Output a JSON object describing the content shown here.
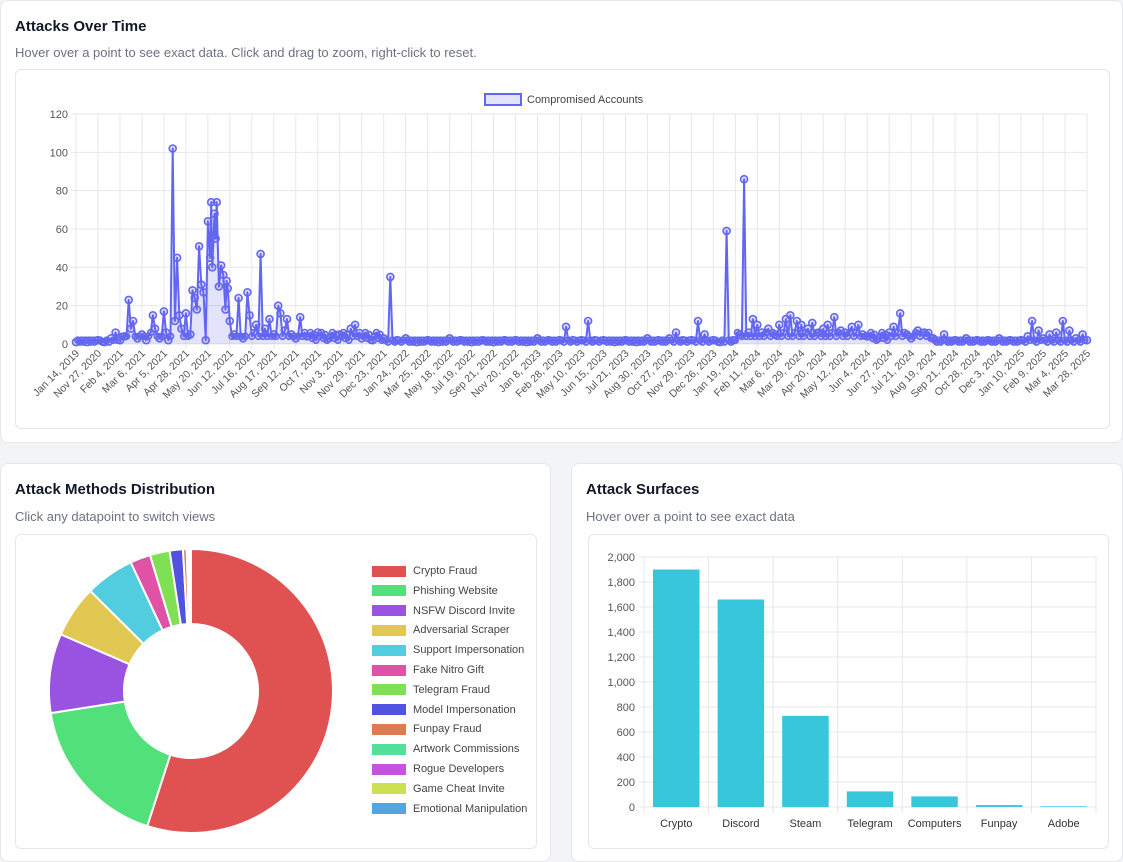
{
  "cards": {
    "time": {
      "title": "Attacks Over Time",
      "subtitle": "Hover over a point to see exact data. Click and drag to zoom, right-click to reset."
    },
    "methods": {
      "title": "Attack Methods Distribution",
      "subtitle": "Click any datapoint to switch views"
    },
    "surfaces": {
      "title": "Attack Surfaces",
      "subtitle": "Hover over a point to see exact data"
    }
  },
  "colors": {
    "line": "#6366f1",
    "line_fill": "rgba(99,102,241,0.18)",
    "bar": "#38c6dd",
    "grid": "#e5e7eb"
  },
  "chart_data": [
    {
      "type": "line",
      "title": "Attacks Over Time",
      "series": [
        {
          "name": "Compromised Accounts"
        }
      ],
      "ylim": [
        0,
        120
      ],
      "yticks": [
        0,
        20,
        40,
        60,
        80,
        100,
        120
      ],
      "xticks": [
        "Jan 14, 2019",
        "Nov 27, 2020",
        "Feb 4, 2021",
        "Mar 6, 2021",
        "Apr 5, 2021",
        "Apr 28, 2021",
        "May 20, 2021",
        "Jun 12, 2021",
        "Jul 16, 2021",
        "Aug 17, 2021",
        "Sep 12, 2021",
        "Oct 7, 2021",
        "Nov 3, 2021",
        "Nov 29, 2021",
        "Dec 23, 2021",
        "Jan 24, 2022",
        "Mar 25, 2022",
        "May 18, 2022",
        "Jul 19, 2022",
        "Sep 21, 2022",
        "Nov 20, 2022",
        "Jan 8, 2023",
        "Feb 28, 2023",
        "May 10, 2023",
        "Jun 15, 2023",
        "Jul 21, 2023",
        "Aug 30, 2023",
        "Oct 27, 2023",
        "Nov 29, 2023",
        "Dec 26, 2023",
        "Jan 19, 2024",
        "Feb 11, 2024",
        "Mar 6, 2024",
        "Mar 29, 2024",
        "Apr 20, 2024",
        "May 12, 2024",
        "Jun 4, 2024",
        "Jun 27, 2024",
        "Jul 21, 2024",
        "Aug 19, 2024",
        "Sep 21, 2024",
        "Oct 28, 2024",
        "Dec 3, 2024",
        "Jan 10, 2025",
        "Feb 9, 2025",
        "Mar 4, 2025",
        "Mar 28, 2025"
      ],
      "peaks": [
        [
          0.0,
          1
        ],
        [
          0.5,
          1
        ],
        [
          1.0,
          2
        ],
        [
          1.3,
          1
        ],
        [
          1.6,
          3
        ],
        [
          1.8,
          6
        ],
        [
          2.0,
          2
        ],
        [
          2.2,
          4
        ],
        [
          2.4,
          23
        ],
        [
          2.5,
          8
        ],
        [
          2.6,
          12
        ],
        [
          2.8,
          3
        ],
        [
          3.0,
          5
        ],
        [
          3.2,
          2
        ],
        [
          3.5,
          15
        ],
        [
          3.6,
          8
        ],
        [
          3.8,
          3
        ],
        [
          4.0,
          17
        ],
        [
          4.1,
          6
        ],
        [
          4.2,
          2
        ],
        [
          4.4,
          102
        ],
        [
          4.5,
          12
        ],
        [
          4.6,
          45
        ],
        [
          4.7,
          15
        ],
        [
          4.8,
          8
        ],
        [
          5.0,
          16
        ],
        [
          5.2,
          5
        ],
        [
          5.3,
          28
        ],
        [
          5.4,
          24
        ],
        [
          5.5,
          18
        ],
        [
          5.6,
          51
        ],
        [
          5.7,
          31
        ],
        [
          5.8,
          27
        ],
        [
          5.9,
          2
        ],
        [
          6.0,
          64
        ],
        [
          6.1,
          45
        ],
        [
          6.15,
          74
        ],
        [
          6.2,
          40
        ],
        [
          6.3,
          68
        ],
        [
          6.35,
          55
        ],
        [
          6.4,
          74
        ],
        [
          6.5,
          30
        ],
        [
          6.6,
          41
        ],
        [
          6.7,
          36
        ],
        [
          6.8,
          18
        ],
        [
          6.85,
          33
        ],
        [
          6.9,
          29
        ],
        [
          7.0,
          12
        ],
        [
          7.2,
          5
        ],
        [
          7.4,
          24
        ],
        [
          7.6,
          3
        ],
        [
          7.8,
          27
        ],
        [
          7.9,
          15
        ],
        [
          8.2,
          10
        ],
        [
          8.4,
          47
        ],
        [
          8.6,
          8
        ],
        [
          8.8,
          13
        ],
        [
          9.0,
          5
        ],
        [
          9.2,
          20
        ],
        [
          9.3,
          16
        ],
        [
          9.5,
          7
        ],
        [
          9.6,
          13
        ],
        [
          9.8,
          5
        ],
        [
          10.0,
          3
        ],
        [
          10.2,
          14
        ],
        [
          10.5,
          4
        ],
        [
          11.0,
          6
        ],
        [
          11.5,
          3
        ],
        [
          12.0,
          5
        ],
        [
          12.5,
          8
        ],
        [
          12.7,
          10
        ],
        [
          13.0,
          3
        ],
        [
          13.5,
          2
        ],
        [
          14.0,
          3
        ],
        [
          14.3,
          35
        ],
        [
          14.6,
          2
        ],
        [
          15.0,
          3
        ],
        [
          15.5,
          1
        ],
        [
          16.0,
          2
        ],
        [
          16.5,
          1
        ],
        [
          17.0,
          3
        ],
        [
          17.5,
          2
        ],
        [
          18.0,
          1
        ],
        [
          18.5,
          2
        ],
        [
          19.0,
          1
        ],
        [
          19.5,
          2
        ],
        [
          20.0,
          2
        ],
        [
          20.5,
          1
        ],
        [
          21.0,
          3
        ],
        [
          21.5,
          2
        ],
        [
          22.0,
          2
        ],
        [
          22.3,
          9
        ],
        [
          22.6,
          2
        ],
        [
          23.0,
          2
        ],
        [
          23.3,
          12
        ],
        [
          23.6,
          2
        ],
        [
          24.0,
          2
        ],
        [
          24.5,
          1
        ],
        [
          25.0,
          2
        ],
        [
          25.5,
          1
        ],
        [
          26.0,
          3
        ],
        [
          26.5,
          2
        ],
        [
          27.0,
          3
        ],
        [
          27.3,
          6
        ],
        [
          27.6,
          2
        ],
        [
          28.0,
          2
        ],
        [
          28.3,
          12
        ],
        [
          28.6,
          5
        ],
        [
          29.0,
          2
        ],
        [
          29.3,
          1
        ],
        [
          29.6,
          59
        ],
        [
          29.9,
          2
        ],
        [
          30.2,
          5
        ],
        [
          30.4,
          86
        ],
        [
          30.6,
          6
        ],
        [
          30.8,
          13
        ],
        [
          31.0,
          10
        ],
        [
          31.2,
          6
        ],
        [
          31.5,
          8
        ],
        [
          31.8,
          5
        ],
        [
          32.0,
          10
        ],
        [
          32.3,
          13
        ],
        [
          32.5,
          15
        ],
        [
          32.8,
          12
        ],
        [
          33.0,
          10
        ],
        [
          33.3,
          8
        ],
        [
          33.5,
          11
        ],
        [
          33.8,
          6
        ],
        [
          34.0,
          8
        ],
        [
          34.2,
          10
        ],
        [
          34.5,
          14
        ],
        [
          34.8,
          7
        ],
        [
          35.0,
          6
        ],
        [
          35.3,
          9
        ],
        [
          35.6,
          10
        ],
        [
          35.8,
          5
        ],
        [
          36.0,
          4
        ],
        [
          36.5,
          3
        ],
        [
          37.0,
          6
        ],
        [
          37.2,
          9
        ],
        [
          37.5,
          16
        ],
        [
          37.8,
          5
        ],
        [
          38.0,
          3
        ],
        [
          38.3,
          7
        ],
        [
          38.6,
          6
        ],
        [
          39.0,
          3
        ],
        [
          39.5,
          5
        ],
        [
          40.0,
          2
        ],
        [
          40.5,
          3
        ],
        [
          41.0,
          2
        ],
        [
          41.5,
          2
        ],
        [
          42.0,
          3
        ],
        [
          42.5,
          2
        ],
        [
          43.0,
          2
        ],
        [
          43.3,
          4
        ],
        [
          43.5,
          12
        ],
        [
          43.8,
          7
        ],
        [
          44.0,
          3
        ],
        [
          44.3,
          5
        ],
        [
          44.6,
          6
        ],
        [
          44.9,
          12
        ],
        [
          45.2,
          7
        ],
        [
          45.5,
          3
        ],
        [
          45.8,
          5
        ],
        [
          46.0,
          2
        ]
      ],
      "ylabel": "",
      "xlabel": ""
    },
    {
      "type": "pie",
      "variant": "doughnut",
      "title": "Attack Methods Distribution",
      "labels": [
        "Crypto Fraud",
        "Phishing Website",
        "NSFW Discord Invite",
        "Adversarial Scraper",
        "Support Impersonation",
        "Fake Nitro Gift",
        "Telegram Fraud",
        "Model Impersonation",
        "Funpay Fraud",
        "Artwork Commissions",
        "Rogue Developers",
        "Game Cheat Invite",
        "Emotional Manipulation"
      ],
      "values": [
        2620,
        835,
        430,
        282,
        266,
        110,
        107,
        72,
        20,
        10,
        6,
        4,
        3
      ],
      "colors": [
        "#e05252",
        "#52e07a",
        "#9a52e0",
        "#e0c852",
        "#52cde0",
        "#e052a5",
        "#7ee052",
        "#5252e0",
        "#e07a52",
        "#52e09a",
        "#c852e0",
        "#cde052",
        "#52a5e0"
      ]
    },
    {
      "type": "bar",
      "title": "Attack Surfaces",
      "categories": [
        "Crypto",
        "Discord",
        "Steam",
        "Telegram",
        "Computers",
        "Funpay",
        "Adobe"
      ],
      "values": [
        1900,
        1660,
        730,
        125,
        85,
        15,
        6
      ],
      "ylim": [
        0,
        2000
      ],
      "yticks": [
        "0",
        "200",
        "400",
        "600",
        "800",
        "1,000",
        "1,200",
        "1,400",
        "1,600",
        "1,800",
        "2,000"
      ],
      "xlabel": "",
      "ylabel": ""
    }
  ]
}
